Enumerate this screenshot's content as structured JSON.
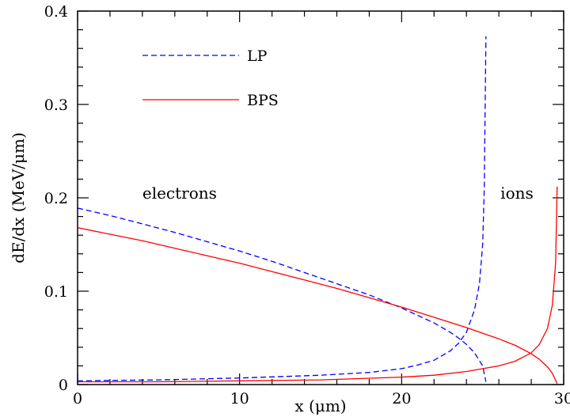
{
  "chart_data": {
    "type": "line",
    "title": "",
    "xlabel": "x (μm)",
    "ylabel": "dE/dx (MeV/μm)",
    "xlim": [
      0,
      30
    ],
    "ylim": [
      0,
      0.4
    ],
    "x_ticks": [
      0,
      10,
      20,
      30
    ],
    "y_ticks": [
      0,
      0.1,
      0.2,
      0.3,
      0.4
    ],
    "x_tick_labels": [
      "0",
      "10",
      "20",
      "30"
    ],
    "y_tick_labels": [
      "0",
      "0.1",
      "0.2",
      "0.3",
      "0.4"
    ],
    "grid": false,
    "legend_position": "top-left",
    "annotations": [
      {
        "text": "electrons",
        "x": 4.0,
        "y": 0.205
      },
      {
        "text": "ions",
        "x": 26.1,
        "y": 0.205
      }
    ],
    "series": [
      {
        "name": "LP",
        "component": "electrons",
        "color": "#0000ff",
        "dash": "dashed",
        "x": [
          0,
          2,
          4,
          6,
          8,
          10,
          12,
          14,
          16,
          18,
          20,
          21,
          22,
          23,
          23.5,
          24,
          24.5,
          25,
          25.2
        ],
        "y": [
          0.189,
          0.181,
          0.172,
          0.163,
          0.153,
          0.143,
          0.132,
          0.12,
          0.108,
          0.096,
          0.082,
          0.074,
          0.066,
          0.056,
          0.05,
          0.043,
          0.034,
          0.02,
          0.003
        ]
      },
      {
        "name": "LP",
        "component": "ions",
        "color": "#0000ff",
        "dash": "dashed",
        "x": [
          0,
          5,
          10,
          15,
          18,
          20,
          21,
          22,
          23,
          23.5,
          24,
          24.5,
          24.8,
          25.0,
          25.1,
          25.2
        ],
        "y": [
          0.004,
          0.005,
          0.007,
          0.01,
          0.013,
          0.017,
          0.021,
          0.026,
          0.036,
          0.044,
          0.056,
          0.08,
          0.108,
          0.15,
          0.21,
          0.373
        ]
      },
      {
        "name": "BPS",
        "component": "electrons",
        "color": "#ff0000",
        "dash": "solid",
        "x": [
          0,
          2,
          4,
          6,
          8,
          10,
          12,
          14,
          16,
          18,
          20,
          22,
          24,
          26,
          27,
          28,
          28.5,
          29,
          29.3,
          29.6
        ],
        "y": [
          0.168,
          0.161,
          0.154,
          0.146,
          0.138,
          0.13,
          0.121,
          0.112,
          0.103,
          0.093,
          0.083,
          0.072,
          0.061,
          0.049,
          0.042,
          0.033,
          0.027,
          0.019,
          0.012,
          0.001
        ]
      },
      {
        "name": "BPS",
        "component": "ions",
        "color": "#ff0000",
        "dash": "solid",
        "x": [
          0,
          5,
          10,
          15,
          20,
          22,
          24,
          26,
          27,
          28,
          28.5,
          29,
          29.3,
          29.5,
          29.6
        ],
        "y": [
          0.003,
          0.003,
          0.004,
          0.005,
          0.008,
          0.01,
          0.014,
          0.02,
          0.025,
          0.034,
          0.043,
          0.06,
          0.085,
          0.13,
          0.212
        ]
      }
    ],
    "legend": [
      {
        "label": "LP",
        "color": "#0000ff",
        "dash": "dashed"
      },
      {
        "label": "BPS",
        "color": "#ff0000",
        "dash": "solid"
      }
    ]
  }
}
